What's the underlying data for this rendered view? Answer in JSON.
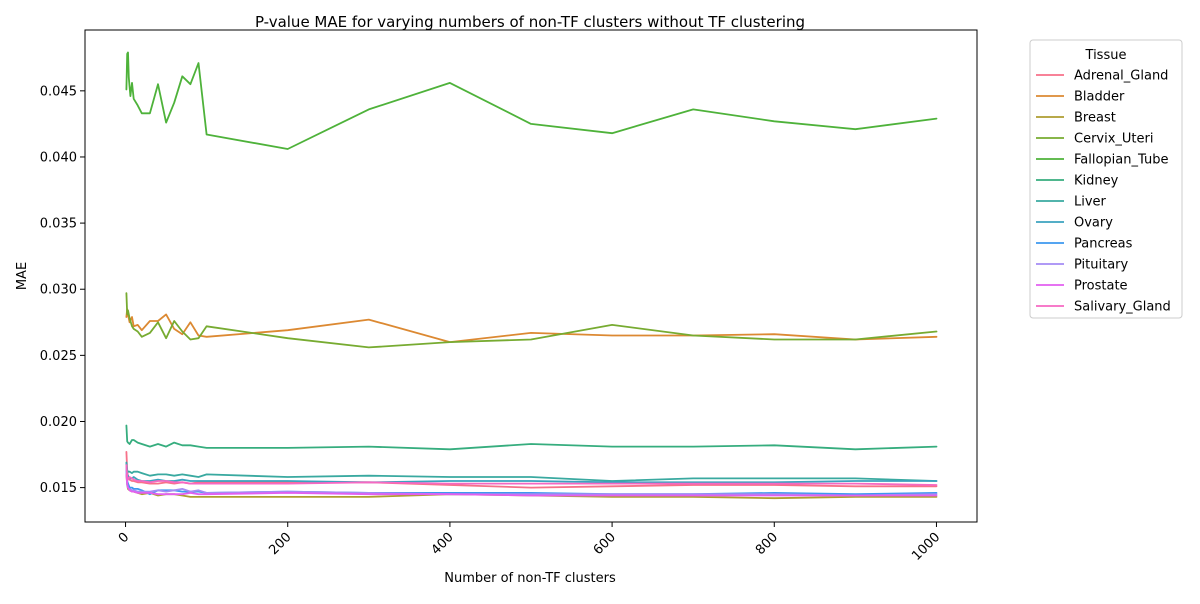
{
  "chart_data": {
    "type": "line",
    "title": "P-value MAE for varying numbers of non-TF clusters without TF clustering",
    "xlabel": "Number of non-TF clusters",
    "ylabel": "MAE",
    "xlim": [
      -50,
      1050
    ],
    "ylim": [
      0.0124,
      0.0496
    ],
    "xticks": [
      0,
      200,
      400,
      600,
      800,
      1000
    ],
    "yticks": [
      0.015,
      0.02,
      0.025,
      0.03,
      0.035,
      0.04,
      0.045
    ],
    "ytick_labels": [
      "0.015",
      "0.020",
      "0.025",
      "0.030",
      "0.035",
      "0.040",
      "0.045"
    ],
    "legend_title": "Tissue",
    "legend_position": "outside-right",
    "grid": false,
    "series": [
      {
        "name": "Adrenal_Gland",
        "color": "#f77189",
        "x": [
          1,
          2,
          3,
          5,
          8,
          10,
          15,
          20,
          30,
          40,
          50,
          60,
          70,
          80,
          90,
          100,
          200,
          300,
          400,
          500,
          600,
          700,
          800,
          900,
          1000
        ],
        "y": [
          0.0177,
          0.0163,
          0.0158,
          0.0156,
          0.0155,
          0.0155,
          0.0154,
          0.0154,
          0.0153,
          0.0153,
          0.0154,
          0.0153,
          0.0154,
          0.0153,
          0.0154,
          0.0154,
          0.0154,
          0.0154,
          0.0152,
          0.015,
          0.0151,
          0.0152,
          0.0152,
          0.0151,
          0.0151
        ]
      },
      {
        "name": "Bladder",
        "color": "#dc8932",
        "x": [
          1,
          2,
          3,
          5,
          8,
          10,
          15,
          20,
          30,
          40,
          50,
          60,
          70,
          80,
          90,
          100,
          200,
          300,
          400,
          500,
          600,
          700,
          800,
          900,
          1000
        ],
        "y": [
          0.0279,
          0.0285,
          0.0281,
          0.0275,
          0.0279,
          0.0272,
          0.0273,
          0.0269,
          0.0276,
          0.0276,
          0.0281,
          0.027,
          0.0266,
          0.0275,
          0.0265,
          0.0264,
          0.0269,
          0.0277,
          0.026,
          0.0267,
          0.0265,
          0.0265,
          0.0266,
          0.0262,
          0.0264
        ]
      },
      {
        "name": "Breast",
        "color": "#ae9d31",
        "x": [
          1,
          2,
          3,
          5,
          8,
          10,
          15,
          20,
          30,
          40,
          50,
          60,
          70,
          80,
          90,
          100,
          200,
          300,
          400,
          500,
          600,
          700,
          800,
          900,
          1000
        ],
        "y": [
          0.016,
          0.0152,
          0.0149,
          0.0148,
          0.0147,
          0.0147,
          0.0146,
          0.0145,
          0.0146,
          0.0144,
          0.0145,
          0.0145,
          0.0144,
          0.0143,
          0.0143,
          0.0143,
          0.0143,
          0.0143,
          0.0145,
          0.0144,
          0.0143,
          0.0143,
          0.0142,
          0.0143,
          0.0143
        ]
      },
      {
        "name": "Cervix_Uteri",
        "color": "#77ab31",
        "x": [
          1,
          2,
          3,
          5,
          8,
          10,
          15,
          20,
          30,
          40,
          50,
          60,
          70,
          80,
          90,
          100,
          200,
          300,
          400,
          500,
          600,
          700,
          800,
          900,
          1000
        ],
        "y": [
          0.0297,
          0.0281,
          0.0284,
          0.0278,
          0.0272,
          0.027,
          0.0268,
          0.0264,
          0.0267,
          0.0275,
          0.0263,
          0.0276,
          0.0268,
          0.0262,
          0.0263,
          0.0272,
          0.0263,
          0.0256,
          0.026,
          0.0262,
          0.0273,
          0.0265,
          0.0262,
          0.0262,
          0.0268
        ]
      },
      {
        "name": "Fallopian_Tube",
        "color": "#4eb23a",
        "x": [
          1,
          2,
          3,
          4,
          5,
          6,
          8,
          10,
          15,
          20,
          30,
          40,
          50,
          60,
          70,
          80,
          90,
          100,
          200,
          300,
          400,
          500,
          600,
          700,
          800,
          900,
          1000
        ],
        "y": [
          0.0451,
          0.0478,
          0.0479,
          0.046,
          0.0453,
          0.0446,
          0.0456,
          0.0444,
          0.0439,
          0.0433,
          0.0433,
          0.0455,
          0.0426,
          0.0441,
          0.0461,
          0.0455,
          0.0471,
          0.0417,
          0.0406,
          0.0436,
          0.0456,
          0.0425,
          0.0418,
          0.0436,
          0.0427,
          0.0421,
          0.0429
        ]
      },
      {
        "name": "Kidney",
        "color": "#36ad7e",
        "x": [
          1,
          2,
          3,
          5,
          8,
          10,
          15,
          20,
          30,
          40,
          50,
          60,
          70,
          80,
          90,
          100,
          200,
          300,
          400,
          500,
          600,
          700,
          800,
          900,
          1000
        ],
        "y": [
          0.0197,
          0.0185,
          0.0184,
          0.0183,
          0.0186,
          0.0186,
          0.0184,
          0.0183,
          0.0181,
          0.0183,
          0.0181,
          0.0184,
          0.0182,
          0.0182,
          0.0181,
          0.018,
          0.018,
          0.0181,
          0.0179,
          0.0183,
          0.0181,
          0.0181,
          0.0182,
          0.0179,
          0.0181
        ]
      },
      {
        "name": "Liver",
        "color": "#39a9a0",
        "x": [
          1,
          2,
          3,
          5,
          8,
          10,
          15,
          20,
          30,
          40,
          50,
          60,
          70,
          80,
          90,
          100,
          200,
          300,
          400,
          500,
          600,
          700,
          800,
          900,
          1000
        ],
        "y": [
          0.0169,
          0.0163,
          0.0162,
          0.0162,
          0.0161,
          0.0162,
          0.0162,
          0.0161,
          0.0159,
          0.016,
          0.016,
          0.0159,
          0.016,
          0.0159,
          0.0158,
          0.016,
          0.0158,
          0.0159,
          0.0158,
          0.0158,
          0.0155,
          0.0157,
          0.0157,
          0.0157,
          0.0155
        ]
      },
      {
        "name": "Ovary",
        "color": "#3ba3bf",
        "x": [
          1,
          2,
          3,
          5,
          8,
          10,
          15,
          20,
          30,
          40,
          50,
          60,
          70,
          80,
          90,
          100,
          200,
          300,
          400,
          500,
          600,
          700,
          800,
          900,
          1000
        ],
        "y": [
          0.0168,
          0.016,
          0.0159,
          0.0157,
          0.0157,
          0.0158,
          0.0156,
          0.0155,
          0.0155,
          0.0156,
          0.0155,
          0.0155,
          0.0156,
          0.0155,
          0.0155,
          0.0155,
          0.0155,
          0.0154,
          0.0155,
          0.0155,
          0.0154,
          0.0154,
          0.0154,
          0.0155,
          0.0155
        ]
      },
      {
        "name": "Pancreas",
        "color": "#3d98ef",
        "x": [
          1,
          2,
          3,
          5,
          8,
          10,
          15,
          20,
          30,
          40,
          50,
          60,
          70,
          80,
          90,
          100,
          200,
          300,
          400,
          500,
          600,
          700,
          800,
          900,
          1000
        ],
        "y": [
          0.0163,
          0.0155,
          0.0153,
          0.015,
          0.015,
          0.0149,
          0.0149,
          0.0148,
          0.0145,
          0.0148,
          0.0148,
          0.0148,
          0.0147,
          0.0147,
          0.0147,
          0.0146,
          0.0147,
          0.0146,
          0.0146,
          0.0146,
          0.0145,
          0.0145,
          0.0146,
          0.0145,
          0.0146
        ]
      },
      {
        "name": "Pituitary",
        "color": "#a48cf4",
        "x": [
          1,
          2,
          3,
          5,
          8,
          10,
          15,
          20,
          30,
          40,
          50,
          60,
          70,
          80,
          90,
          100,
          200,
          300,
          400,
          500,
          600,
          700,
          800,
          900,
          1000
        ],
        "y": [
          0.0165,
          0.0152,
          0.015,
          0.0149,
          0.0148,
          0.0148,
          0.0147,
          0.0147,
          0.0147,
          0.0148,
          0.0147,
          0.0148,
          0.0149,
          0.0147,
          0.0148,
          0.0146,
          0.0147,
          0.0146,
          0.0145,
          0.0145,
          0.0145,
          0.0145,
          0.0145,
          0.0144,
          0.0145
        ]
      },
      {
        "name": "Prostate",
        "color": "#e35ff0",
        "x": [
          1,
          2,
          3,
          5,
          8,
          10,
          15,
          20,
          30,
          40,
          50,
          60,
          70,
          80,
          90,
          100,
          200,
          300,
          400,
          500,
          600,
          700,
          800,
          900,
          1000
        ],
        "y": [
          0.016,
          0.0153,
          0.015,
          0.0148,
          0.0147,
          0.0147,
          0.0146,
          0.0146,
          0.0146,
          0.0145,
          0.0145,
          0.0145,
          0.0145,
          0.0146,
          0.0145,
          0.0145,
          0.0146,
          0.0145,
          0.0145,
          0.0144,
          0.0144,
          0.0144,
          0.0144,
          0.0144,
          0.0144
        ]
      },
      {
        "name": "Salivary_Gland",
        "color": "#f668c3",
        "x": [
          1,
          2,
          3,
          5,
          8,
          10,
          15,
          20,
          30,
          40,
          50,
          60,
          70,
          80,
          90,
          100,
          200,
          300,
          400,
          500,
          600,
          700,
          800,
          900,
          1000
        ],
        "y": [
          0.0167,
          0.0158,
          0.0156,
          0.0158,
          0.0157,
          0.0156,
          0.0155,
          0.0155,
          0.0154,
          0.0155,
          0.0155,
          0.0154,
          0.0154,
          0.0153,
          0.0153,
          0.0153,
          0.0153,
          0.0154,
          0.0153,
          0.0153,
          0.0153,
          0.0153,
          0.0153,
          0.0153,
          0.0152
        ]
      }
    ]
  }
}
